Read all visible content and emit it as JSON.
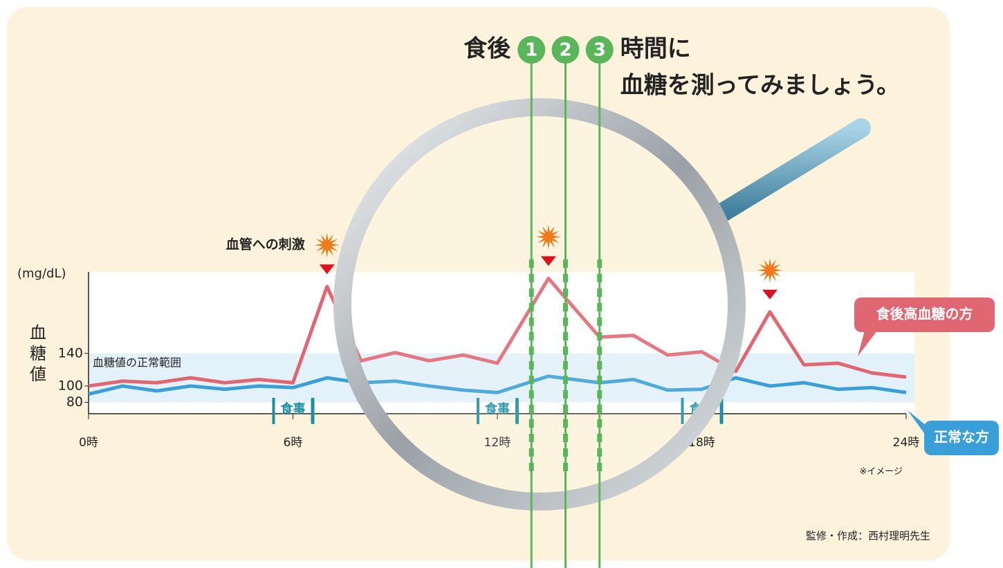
{
  "chart_data": {
    "type": "line",
    "title": [
      "食後",
      "時間に",
      "血糖を測ってみましょう。"
    ],
    "after_meal_hours": [
      1,
      2,
      3
    ],
    "y_unit": "(mg/dL)",
    "y_label": [
      "血",
      "糖",
      "値"
    ],
    "normal_range": {
      "label": "血糖値の正常範囲",
      "from": 80,
      "to": 140
    },
    "stimulus_label": "血管への刺激",
    "meals": {
      "label": "食事",
      "x": [
        6,
        12,
        18
      ]
    },
    "x": [
      0,
      1,
      2,
      3,
      4,
      5,
      6,
      7,
      8,
      9,
      10,
      11,
      12,
      13.5,
      15,
      16,
      17,
      18,
      19,
      20,
      21,
      22,
      23,
      24
    ],
    "series": [
      {
        "name": "食後高血糖の方",
        "color": "#e06671",
        "values": [
          100,
          106,
          104,
          110,
          104,
          108,
          104,
          222,
          131,
          141,
          131,
          138,
          128,
          232,
          160,
          162,
          138,
          142,
          118,
          191,
          126,
          128,
          116,
          111
        ]
      },
      {
        "name": "正常な方",
        "color": "#3a9fd8",
        "values": [
          90,
          100,
          94,
          100,
          96,
          100,
          98,
          110,
          104,
          106,
          100,
          95,
          92,
          112,
          104,
          108,
          95,
          96,
          110,
          100,
          104,
          96,
          98,
          92
        ]
      }
    ],
    "xlim": [
      0,
      24
    ],
    "xticks": [
      {
        "value": 0,
        "label": "0時"
      },
      {
        "value": 6,
        "label": "6時"
      },
      {
        "value": 12,
        "label": "12時"
      },
      {
        "value": 18,
        "label": "18時"
      },
      {
        "value": 24,
        "label": "24時"
      }
    ],
    "ylim": [
      66,
      240
    ],
    "yticks": [
      80,
      100,
      140
    ],
    "note": "※イメージ",
    "credit": "監修・作成：西村理明先生"
  }
}
